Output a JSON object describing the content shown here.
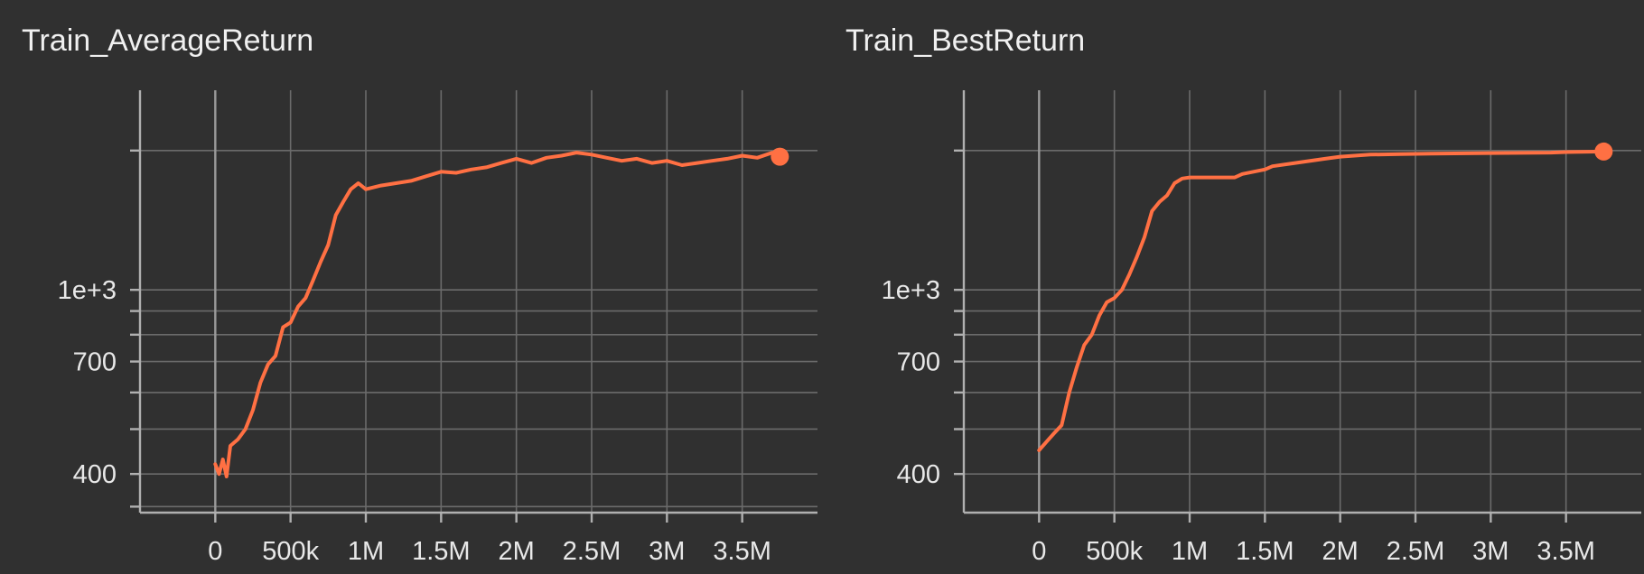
{
  "chart_data": [
    {
      "type": "line",
      "title": "Train_AverageReturn",
      "color": "#ff7043",
      "y_scale": "log",
      "grid": true,
      "legend": "none",
      "xlim": [
        -500000,
        4000000
      ],
      "ylim": [
        330,
        2700
      ],
      "x_ticks": [
        {
          "value": 0,
          "label": "0"
        },
        {
          "value": 500000,
          "label": "500k"
        },
        {
          "value": 1000000,
          "label": "1M"
        },
        {
          "value": 1500000,
          "label": "1.5M"
        },
        {
          "value": 2000000,
          "label": "2M"
        },
        {
          "value": 2500000,
          "label": "2.5M"
        },
        {
          "value": 3000000,
          "label": "3M"
        },
        {
          "value": 3500000,
          "label": "3.5M"
        }
      ],
      "y_ticks": [
        {
          "value": 340,
          "label": ""
        },
        {
          "value": 400,
          "label": "400"
        },
        {
          "value": 500,
          "label": ""
        },
        {
          "value": 600,
          "label": ""
        },
        {
          "value": 700,
          "label": "700"
        },
        {
          "value": 800,
          "label": ""
        },
        {
          "value": 900,
          "label": ""
        },
        {
          "value": 1000,
          "label": "1e+3"
        },
        {
          "value": 2000,
          "label": ""
        }
      ],
      "series": [
        {
          "x": [
            0,
            25000,
            50000,
            75000,
            100000,
            150000,
            200000,
            250000,
            300000,
            350000,
            400000,
            450000,
            500000,
            550000,
            600000,
            650000,
            700000,
            750000,
            800000,
            850000,
            900000,
            950000,
            1000000,
            1100000,
            1200000,
            1300000,
            1400000,
            1500000,
            1600000,
            1700000,
            1800000,
            1900000,
            2000000,
            2100000,
            2200000,
            2300000,
            2400000,
            2500000,
            2600000,
            2700000,
            2800000,
            2900000,
            3000000,
            3100000,
            3200000,
            3300000,
            3400000,
            3500000,
            3600000,
            3700000,
            3750000
          ],
          "y": [
            420,
            400,
            430,
            395,
            460,
            475,
            500,
            550,
            630,
            690,
            720,
            830,
            850,
            920,
            960,
            1050,
            1150,
            1250,
            1450,
            1550,
            1650,
            1700,
            1650,
            1680,
            1700,
            1720,
            1760,
            1800,
            1790,
            1820,
            1840,
            1880,
            1920,
            1880,
            1930,
            1950,
            1980,
            1960,
            1930,
            1900,
            1920,
            1880,
            1900,
            1860,
            1880,
            1900,
            1920,
            1950,
            1930,
            1980,
            1940
          ]
        }
      ]
    },
    {
      "type": "line",
      "title": "Train_BestReturn",
      "color": "#ff7043",
      "y_scale": "log",
      "grid": true,
      "legend": "none",
      "xlim": [
        -500000,
        4000000
      ],
      "ylim": [
        330,
        2700
      ],
      "x_ticks": [
        {
          "value": 0,
          "label": "0"
        },
        {
          "value": 500000,
          "label": "500k"
        },
        {
          "value": 1000000,
          "label": "1M"
        },
        {
          "value": 1500000,
          "label": "1.5M"
        },
        {
          "value": 2000000,
          "label": "2M"
        },
        {
          "value": 2500000,
          "label": "2.5M"
        },
        {
          "value": 3000000,
          "label": "3M"
        },
        {
          "value": 3500000,
          "label": "3.5M"
        }
      ],
      "y_ticks": [
        {
          "value": 400,
          "label": "400"
        },
        {
          "value": 500,
          "label": ""
        },
        {
          "value": 600,
          "label": ""
        },
        {
          "value": 700,
          "label": "700"
        },
        {
          "value": 800,
          "label": ""
        },
        {
          "value": 900,
          "label": ""
        },
        {
          "value": 1000,
          "label": "1e+3"
        },
        {
          "value": 2000,
          "label": ""
        }
      ],
      "series": [
        {
          "x": [
            0,
            50000,
            100000,
            150000,
            200000,
            250000,
            300000,
            350000,
            400000,
            450000,
            500000,
            550000,
            600000,
            650000,
            700000,
            750000,
            800000,
            850000,
            900000,
            950000,
            1000000,
            1300000,
            1350000,
            1500000,
            1550000,
            1700000,
            1900000,
            2000000,
            2200000,
            2400000,
            2600000,
            3000000,
            3400000,
            3500000,
            3750000
          ],
          "y": [
            450,
            470,
            490,
            510,
            600,
            680,
            760,
            800,
            880,
            940,
            960,
            1000,
            1080,
            1180,
            1300,
            1480,
            1550,
            1600,
            1700,
            1740,
            1750,
            1750,
            1780,
            1820,
            1850,
            1880,
            1920,
            1940,
            1960,
            1965,
            1970,
            1975,
            1980,
            1985,
            1990
          ]
        }
      ]
    }
  ]
}
